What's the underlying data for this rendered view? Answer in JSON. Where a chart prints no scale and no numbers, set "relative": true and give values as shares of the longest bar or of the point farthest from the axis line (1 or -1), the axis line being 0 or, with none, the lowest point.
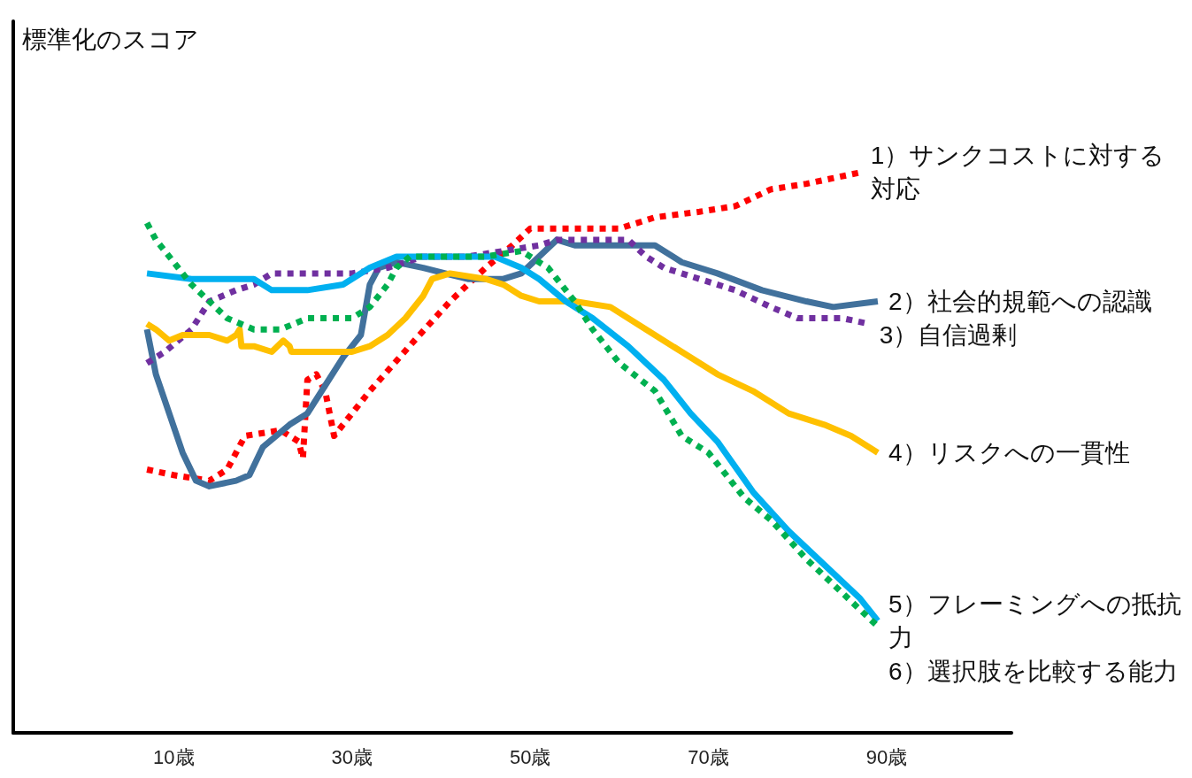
{
  "chart_data": {
    "type": "line",
    "ylabel": "標準化のスコア",
    "relative": true,
    "grid": false,
    "marker": "none",
    "xlim": [
      -8,
      104
    ],
    "xticks": [
      {
        "value": 10,
        "label": "10歳"
      },
      {
        "value": 30,
        "label": "30歳"
      },
      {
        "value": 50,
        "label": "50歳"
      },
      {
        "value": 70,
        "label": "70歳"
      },
      {
        "value": 90,
        "label": "90歳"
      }
    ],
    "series": [
      {
        "name": "1）サンクコストに対する対応",
        "color": "#ff0000",
        "line_style": "dotted",
        "x": [
          7,
          10,
          14,
          16,
          18,
          22,
          24,
          24.5,
          25,
          26,
          27,
          28,
          32,
          37,
          41,
          45,
          48,
          50,
          60,
          64,
          69,
          73,
          77,
          81,
          87
        ],
        "values": [
          0.47,
          0.46,
          0.45,
          0.47,
          0.53,
          0.54,
          0.52,
          0.49,
          0.63,
          0.64,
          0.61,
          0.53,
          0.61,
          0.7,
          0.77,
          0.83,
          0.87,
          0.9,
          0.9,
          0.92,
          0.93,
          0.94,
          0.97,
          0.98,
          1.0
        ]
      },
      {
        "name": "2）社会的規範への認識",
        "color": "#41719c",
        "line_style": "solid",
        "x": [
          7,
          8,
          9.5,
          11,
          12.5,
          14,
          17,
          18.5,
          20,
          23,
          25,
          27,
          29,
          31,
          32,
          33,
          35,
          38,
          43,
          47,
          49,
          51,
          53,
          55,
          61,
          64,
          67,
          71,
          76,
          81,
          84,
          89
        ],
        "values": [
          0.72,
          0.64,
          0.57,
          0.5,
          0.45,
          0.44,
          0.45,
          0.46,
          0.51,
          0.55,
          0.57,
          0.62,
          0.67,
          0.71,
          0.8,
          0.83,
          0.84,
          0.83,
          0.81,
          0.81,
          0.82,
          0.85,
          0.88,
          0.87,
          0.87,
          0.87,
          0.84,
          0.82,
          0.79,
          0.77,
          0.76,
          0.77
        ]
      },
      {
        "name": "3）自信過剰",
        "color": "#7030a0",
        "line_style": "dotted",
        "x": [
          7,
          9,
          12,
          14,
          17,
          19,
          21,
          24,
          30,
          34,
          38,
          43,
          47,
          51,
          53,
          56,
          61,
          63,
          65,
          69,
          73,
          77,
          80,
          85,
          88
        ],
        "values": [
          0.66,
          0.68,
          0.72,
          0.77,
          0.79,
          0.8,
          0.82,
          0.82,
          0.82,
          0.83,
          0.85,
          0.85,
          0.86,
          0.87,
          0.88,
          0.88,
          0.88,
          0.85,
          0.83,
          0.81,
          0.79,
          0.76,
          0.74,
          0.74,
          0.73
        ]
      },
      {
        "name": "4）リスクへの一貫性",
        "color": "#ffc000",
        "line_style": "solid",
        "x": [
          7,
          8,
          9.5,
          11,
          14,
          16,
          17,
          17.4,
          17.6,
          19,
          21,
          22.3,
          23,
          23.2,
          26,
          30,
          32,
          34,
          36,
          38,
          39,
          41,
          45,
          47,
          49,
          51,
          55,
          59,
          63,
          67,
          71,
          75,
          79,
          83,
          86,
          89
        ],
        "values": [
          0.73,
          0.72,
          0.7,
          0.71,
          0.71,
          0.7,
          0.71,
          0.72,
          0.69,
          0.69,
          0.68,
          0.7,
          0.69,
          0.68,
          0.68,
          0.68,
          0.69,
          0.71,
          0.74,
          0.78,
          0.81,
          0.82,
          0.81,
          0.8,
          0.78,
          0.77,
          0.77,
          0.76,
          0.72,
          0.68,
          0.64,
          0.61,
          0.57,
          0.55,
          0.53,
          0.5
        ]
      },
      {
        "name": "5）フレーミングへの抵抗力",
        "color": "#00b0f0",
        "line_style": "solid",
        "x": [
          7,
          12,
          19,
          21,
          25,
          29,
          32,
          35,
          39,
          46,
          49,
          51,
          54,
          57,
          61,
          65,
          68,
          71,
          75,
          79,
          83,
          87,
          89
        ],
        "values": [
          0.82,
          0.81,
          0.81,
          0.79,
          0.79,
          0.8,
          0.83,
          0.85,
          0.85,
          0.85,
          0.83,
          0.81,
          0.77,
          0.74,
          0.69,
          0.63,
          0.57,
          0.52,
          0.43,
          0.36,
          0.3,
          0.24,
          0.2
        ]
      },
      {
        "name": "6）選択肢を比較する能力",
        "color": "#00b050",
        "line_style": "dotted",
        "x": [
          7,
          8,
          10.5,
          12,
          14,
          16,
          19,
          22,
          25,
          30,
          32,
          34,
          35,
          36.5,
          39,
          45,
          49,
          50,
          52,
          53,
          55,
          57,
          60,
          64,
          67,
          70,
          74,
          77,
          81,
          85,
          89
        ],
        "values": [
          0.91,
          0.88,
          0.83,
          0.8,
          0.77,
          0.74,
          0.72,
          0.72,
          0.74,
          0.74,
          0.76,
          0.8,
          0.83,
          0.85,
          0.85,
          0.85,
          0.86,
          0.85,
          0.83,
          0.81,
          0.77,
          0.72,
          0.66,
          0.61,
          0.53,
          0.5,
          0.42,
          0.38,
          0.31,
          0.25,
          0.19
        ]
      }
    ]
  }
}
